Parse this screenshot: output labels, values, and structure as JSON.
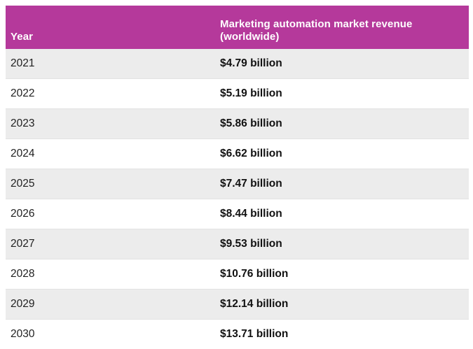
{
  "theme": {
    "header_bg": "#b5399b",
    "header_text": "#ffffff",
    "row_shade": "#ececec"
  },
  "chart_data": {
    "type": "table",
    "columns": [
      "Year",
      "Marketing automation market revenue (worldwide)"
    ],
    "rows": [
      [
        "2021",
        "$4.79 billion"
      ],
      [
        "2022",
        "$5.19 billion"
      ],
      [
        "2023",
        "$5.86 billion"
      ],
      [
        "2024",
        "$6.62 billion"
      ],
      [
        "2025",
        "$7.47 billion"
      ],
      [
        "2026",
        "$8.44 billion"
      ],
      [
        "2027",
        "$9.53 billion"
      ],
      [
        "2028",
        "$10.76 billion"
      ],
      [
        "2029",
        "$12.14 billion"
      ],
      [
        "2030",
        "$13.71 billion"
      ]
    ],
    "shaded_rows": [
      0,
      2,
      4,
      6,
      8
    ]
  }
}
